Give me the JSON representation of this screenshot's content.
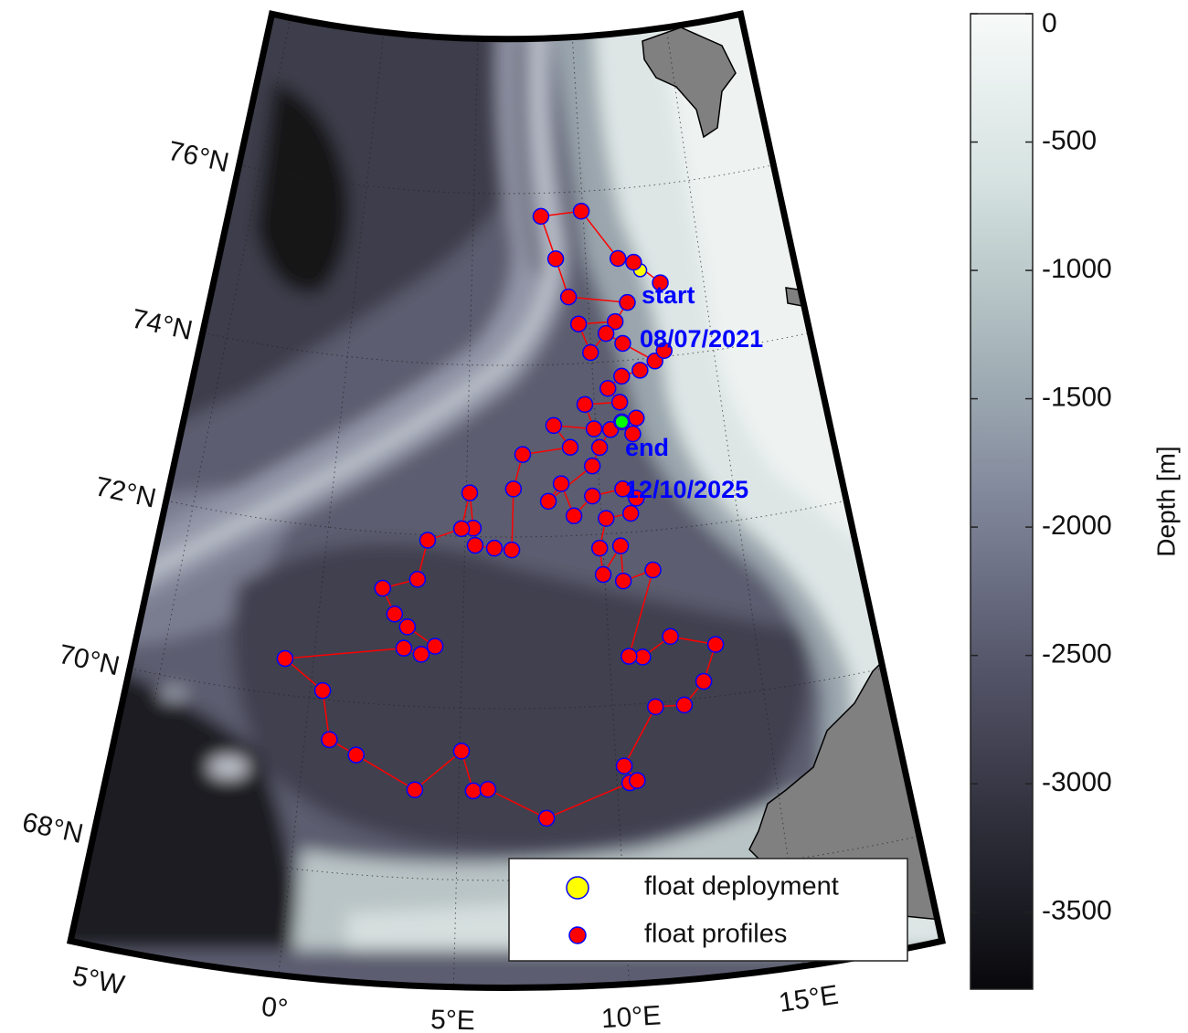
{
  "chart_data": {
    "type": "map",
    "lonlim": [
      -6,
      19
    ],
    "latlim": [
      66.75,
      77.8
    ],
    "lonticks": [
      {
        "value": -5,
        "label": "5°W"
      },
      {
        "value": 0,
        "label": "0°"
      },
      {
        "value": 5,
        "label": "5°E"
      },
      {
        "value": 10,
        "label": "10°E"
      },
      {
        "value": 15,
        "label": "15°E"
      }
    ],
    "latticks": [
      {
        "value": 68,
        "label": "68°N"
      },
      {
        "value": 70,
        "label": "70°N"
      },
      {
        "value": 72,
        "label": "72°N"
      },
      {
        "value": 74,
        "label": "74°N"
      },
      {
        "value": 76,
        "label": "76°N"
      }
    ],
    "grid": true,
    "series": [
      {
        "name": "float deployment",
        "color": "#ffff00",
        "edgecolor": "#0000ff",
        "lon": [
          12.34
        ],
        "lat": [
          75.03
        ]
      },
      {
        "name": "float profiles",
        "color": "#ff0000",
        "edgecolor": "#0000ff",
        "line_color": "#ff0000",
        "lon": [
          13.15,
          12.09,
          11.42,
          9.93,
          8.08,
          8.68,
          9.17,
          11.66,
          11.08,
          9.54,
          9.97,
          10.66,
          11.32,
          12.57,
          12.99,
          11.93,
          11.17,
          10.58,
          11.01,
          9.62,
          9.93,
          8.36,
          8.97,
          7.13,
          6.77,
          6.7,
          6.07,
          5.37,
          5.29,
          5.13,
          4.86,
          3.64,
          3.35,
          2.14,
          2.62,
          3.09,
          4.07,
          3.61,
          3.01,
          -0.96,
          0.41,
          0.79,
          1.69,
          3.62,
          5.06,
          5.46,
          5.92,
          7.75,
          10.4,
          10.64,
          10.26,
          11.41,
          12.36,
          13.08,
          13.62,
          12.12,
          11.12,
          10.66,
          11.73,
          10.65,
          10.64,
          9.95,
          9.88,
          10.18,
          11.1,
          11.35,
          10.87,
          9.72,
          9.0,
          8.57,
          8.07,
          9.78,
          10.1,
          10.57,
          11.61,
          11.42,
          11.03
        ],
        "lat": [
          74.86,
          75.13,
          75.19,
          75.77,
          75.73,
          75.23,
          74.78,
          74.67,
          74.46,
          74.46,
          74.12,
          74.33,
          74.2,
          73.96,
          74.07,
          73.87,
          73.82,
          73.69,
          73.52,
          73.52,
          73.23,
          73.29,
          73.03,
          72.96,
          72.56,
          71.85,
          71.87,
          71.9,
          72.1,
          72.51,
          72.09,
          71.94,
          71.48,
          71.35,
          71.06,
          70.92,
          70.71,
          70.61,
          70.67,
          70.42,
          70.1,
          69.54,
          69.39,
          69.03,
          69.5,
          69.04,
          69.06,
          68.72,
          69.09,
          69.11,
          69.29,
          69.95,
          69.94,
          70.19,
          70.6,
          70.75,
          70.54,
          70.56,
          71.54,
          71.44,
          71.85,
          71.53,
          71.84,
          72.18,
          72.22,
          72.39,
          72.51,
          72.45,
          72.23,
          72.61,
          72.41,
          72.8,
          73.01,
          73.21,
          73.32,
          73.14,
          73.29
        ]
      }
    ],
    "end_position": {
      "color": "#00ff00",
      "lon": 11.03,
      "lat": 73.29
    },
    "annotations": [
      {
        "lines": [
          "start",
          "08/07/2021"
        ],
        "color": "#0000ff"
      },
      {
        "lines": [
          "end",
          "12/10/2025"
        ],
        "color": "#0000ff"
      }
    ],
    "colorbar": {
      "label": "Depth [m]",
      "clim": [
        -3800,
        0
      ],
      "ticks": [
        0,
        -500,
        -1000,
        -1500,
        -2000,
        -2500,
        -3000,
        -3500
      ],
      "colormap": [
        "#08080c",
        "#2e2e3a",
        "#55566a",
        "#80869a",
        "#a9b8bc",
        "#d6e3e1",
        "#f7faf9"
      ]
    },
    "legend": {
      "location": "southeast"
    }
  }
}
